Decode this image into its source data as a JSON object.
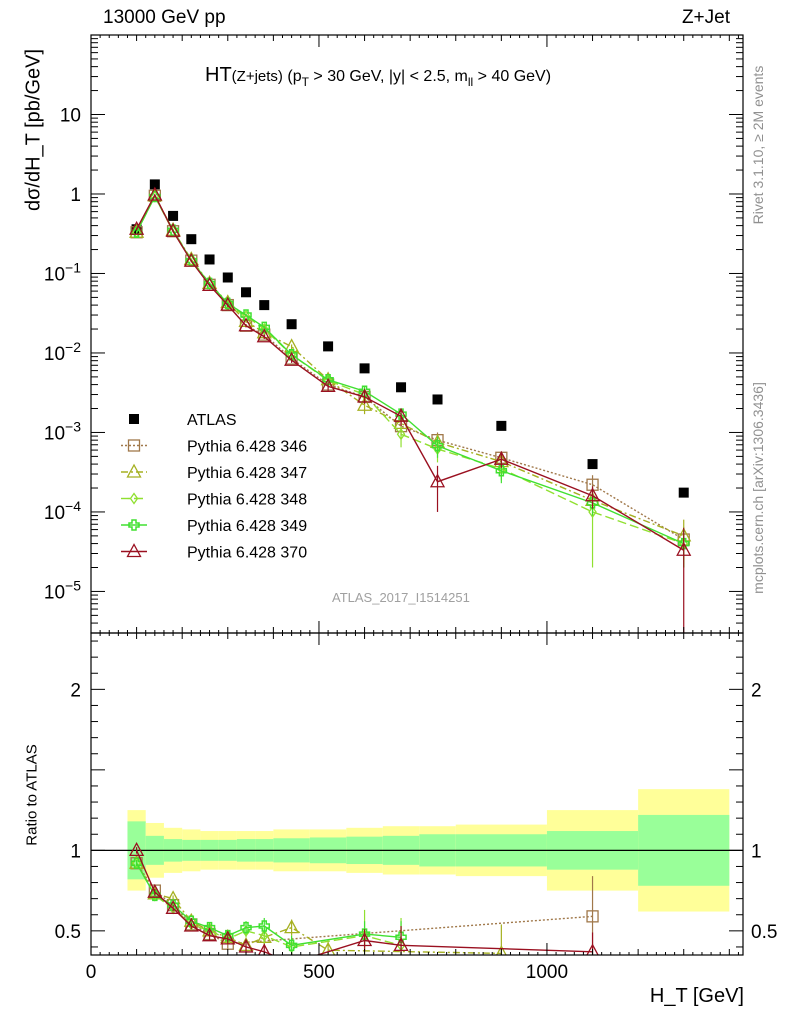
{
  "header": {
    "left": "13000 GeV pp",
    "right": "Z+Jet"
  },
  "side": {
    "rivet": "Rivet 3.1.10, ≥ 2M events",
    "mcplots": "mcplots.cern.ch [arXiv:1306.3436]"
  },
  "analysis_id": "ATLAS_2017_I1514251",
  "chart_data": [
    {
      "type": "scatter",
      "title": "HT(Z+jets) (pT > 30 GeV, |y| < 2.5, mll > 40 GeV)",
      "title_parts": {
        "main": "HT",
        "sub": "(Z+jets)",
        "cuts_a": " (p",
        "cuts_a_sub": "T",
        "cuts_b": " > 30 GeV, |y| < 2.5, m",
        "cuts_b_sub": "ll",
        "cuts_c": " > 40 GeV)"
      },
      "ylabel": "dσ/dH_T [pb/GeV]",
      "y_scale": "log",
      "ylim": [
        3e-06,
        100
      ],
      "xlim": [
        0,
        1430
      ],
      "x": [
        100,
        140,
        180,
        220,
        260,
        300,
        340,
        380,
        440,
        520,
        600,
        680,
        760,
        900,
        1100,
        1300
      ],
      "series": [
        {
          "name": "ATLAS",
          "color": "#000000",
          "marker": "square",
          "values": [
            0.36,
            1.32,
            0.53,
            0.27,
            0.15,
            0.089,
            0.058,
            0.04,
            0.023,
            0.0121,
            0.0064,
            0.0037,
            0.0026,
            0.00121,
            0.0004,
            0.000175
          ]
        },
        {
          "name": "Pythia 6.428 346",
          "color": "#a0784a",
          "marker": "square-open",
          "dash": "2,2",
          "values": [
            0.33,
            0.95,
            0.34,
            0.145,
            0.072,
            0.04,
            0.022,
            0.017,
            0.0085,
            0.004,
            0.0028,
            0.0012,
            0.0008,
            0.00048,
            0.00022,
            4.5e-05
          ],
          "errors": [
            0.01,
            0.02,
            0.01,
            0.005,
            0.003,
            0.002,
            0.001,
            0.001,
            0.0006,
            0.0004,
            0.0004,
            0.0003,
            0.0002,
            0.0001,
            7e-05,
            2e-05
          ]
        },
        {
          "name": "Pythia 6.428 347",
          "color": "#a5b020",
          "marker": "triangle-open",
          "dash": "7,3,2,3",
          "values": [
            0.33,
            0.95,
            0.35,
            0.15,
            0.075,
            0.043,
            0.025,
            0.018,
            0.012,
            0.0046,
            0.0022,
            0.0013,
            0.00075,
            0.00043,
            0.00014,
            5e-05
          ],
          "errors": [
            0.01,
            0.02,
            0.01,
            0.005,
            0.003,
            0.002,
            0.001,
            0.001,
            0.0008,
            0.0005,
            0.0005,
            0.0003,
            0.0002,
            0.0001,
            5e-05,
            3e-05
          ]
        },
        {
          "name": "Pythia 6.428 348",
          "color": "#90e030",
          "marker": "diamond-open",
          "dash": "9,4",
          "values": [
            0.33,
            0.93,
            0.34,
            0.145,
            0.074,
            0.04,
            0.029,
            0.02,
            0.0095,
            0.0045,
            0.003,
            0.00095,
            0.00062,
            0.00035,
            0.0001,
            4e-05
          ],
          "errors": [
            0.01,
            0.02,
            0.01,
            0.005,
            0.003,
            0.002,
            0.001,
            0.001,
            0.0007,
            0.0005,
            0.0005,
            0.0003,
            0.0002,
            0.0001,
            8e-05,
            2e-05
          ]
        },
        {
          "name": "Pythia 6.428 349",
          "color": "#40e030",
          "marker": "cross",
          "dash": "",
          "values": [
            0.33,
            0.93,
            0.35,
            0.145,
            0.075,
            0.042,
            0.03,
            0.021,
            0.0095,
            0.0046,
            0.0033,
            0.0017,
            0.00068,
            0.00033,
            0.00013,
            4e-05
          ],
          "errors": [
            0.01,
            0.02,
            0.01,
            0.005,
            0.003,
            0.002,
            0.001,
            0.001,
            0.0007,
            0.0005,
            0.0005,
            0.0003,
            0.0002,
            0.0001,
            4e-05,
            2e-05
          ]
        },
        {
          "name": "Pythia 6.428 370",
          "color": "#9a1020",
          "marker": "triangle-open",
          "dash": "",
          "values": [
            0.36,
            0.97,
            0.34,
            0.143,
            0.071,
            0.04,
            0.022,
            0.016,
            0.0081,
            0.0038,
            0.0028,
            0.0016,
            0.00024,
            0.00046,
            0.00016,
            3.3e-05
          ],
          "errors": [
            0.01,
            0.02,
            0.01,
            0.005,
            0.003,
            0.002,
            0.001,
            0.001,
            0.0006,
            0.0005,
            0.0005,
            0.0004,
            0.00014,
            0.0001,
            5e-05,
            3e-05
          ]
        }
      ],
      "yticks": [
        "10^-5",
        "10^-4",
        "10^-3",
        "10^-2",
        "10^-1",
        "1",
        "10"
      ],
      "legend": "left-center"
    },
    {
      "type": "scatter",
      "ylabel": "Ratio to ATLAS",
      "xlabel": "H_T [GeV]",
      "ylim": [
        0.35,
        2.35
      ],
      "xlim": [
        0,
        1430
      ],
      "yticks": [
        "0.5",
        "1",
        "2"
      ],
      "xticks": [
        "0",
        "500",
        "1000"
      ],
      "bins": [
        [
          80,
          120
        ],
        [
          120,
          160
        ],
        [
          160,
          200
        ],
        [
          200,
          240
        ],
        [
          240,
          280
        ],
        [
          280,
          320
        ],
        [
          320,
          360
        ],
        [
          360,
          400
        ],
        [
          400,
          480
        ],
        [
          480,
          560
        ],
        [
          560,
          640
        ],
        [
          640,
          720
        ],
        [
          720,
          800
        ],
        [
          800,
          1000
        ],
        [
          1000,
          1200
        ],
        [
          1200,
          1400
        ]
      ],
      "band_inner": [
        0.18,
        0.09,
        0.07,
        0.065,
        0.065,
        0.065,
        0.07,
        0.07,
        0.075,
        0.08,
        0.085,
        0.09,
        0.1,
        0.1,
        0.12,
        0.22
      ],
      "band_outer": [
        0.25,
        0.17,
        0.14,
        0.13,
        0.12,
        0.12,
        0.12,
        0.12,
        0.13,
        0.13,
        0.14,
        0.15,
        0.15,
        0.16,
        0.25,
        0.38
      ],
      "band_inner_color": "#99ff99",
      "band_outer_color": "#ffff99",
      "series": [
        {
          "name": "Pythia 6.428 346",
          "color": "#a0784a",
          "marker": "square-open",
          "dash": "2,2",
          "x": [
            100,
            140,
            180,
            220,
            260,
            300,
            1100
          ],
          "values": [
            0.92,
            0.75,
            0.66,
            0.54,
            0.48,
            0.42,
            0.59
          ],
          "errors": [
            0.02,
            0.02,
            0.02,
            0.02,
            0.02,
            0.03,
            0.25
          ]
        },
        {
          "name": "Pythia 6.428 347",
          "color": "#a5b020",
          "marker": "triangle-open",
          "dash": "7,3,2,3",
          "x": [
            100,
            140,
            180,
            220,
            260,
            300,
            340,
            380,
            440,
            520,
            900
          ],
          "values": [
            0.92,
            0.73,
            0.7,
            0.56,
            0.5,
            0.46,
            0.41,
            0.46,
            0.52,
            0.38,
            0.36
          ],
          "errors": [
            0.02,
            0.02,
            0.02,
            0.02,
            0.03,
            0.03,
            0.04,
            0.04,
            0.05,
            0.06,
            0.18
          ]
        },
        {
          "name": "Pythia 6.428 348",
          "color": "#90e030",
          "marker": "diamond-open",
          "dash": "9,4",
          "x": [
            100,
            140,
            180,
            220,
            260,
            300,
            340,
            380,
            440,
            600,
            680
          ],
          "values": [
            0.92,
            0.72,
            0.64,
            0.54,
            0.5,
            0.45,
            0.5,
            0.47,
            0.4,
            0.47,
            0.41
          ],
          "errors": [
            0.02,
            0.02,
            0.02,
            0.02,
            0.03,
            0.03,
            0.04,
            0.05,
            0.06,
            0.16,
            0.17
          ]
        },
        {
          "name": "Pythia 6.428 349",
          "color": "#40e030",
          "marker": "cross",
          "dash": "",
          "x": [
            100,
            140,
            180,
            220,
            260,
            300,
            340,
            380,
            440,
            600,
            680
          ],
          "values": [
            0.92,
            0.72,
            0.66,
            0.56,
            0.52,
            0.47,
            0.52,
            0.53,
            0.41,
            0.48,
            0.46
          ],
          "errors": [
            0.02,
            0.02,
            0.02,
            0.02,
            0.03,
            0.03,
            0.04,
            0.05,
            0.06,
            0.08,
            0.1
          ]
        },
        {
          "name": "Pythia 6.428 370",
          "color": "#9a1020",
          "marker": "triangle-open",
          "dash": "",
          "x": [
            100,
            140,
            180,
            220,
            260,
            300,
            340,
            380,
            440,
            600,
            680,
            1100
          ],
          "values": [
            1.0,
            0.74,
            0.64,
            0.53,
            0.47,
            0.45,
            0.4,
            0.37,
            0.3,
            0.44,
            0.41,
            0.37
          ],
          "errors": [
            0.02,
            0.02,
            0.02,
            0.02,
            0.03,
            0.03,
            0.04,
            0.05,
            0.06,
            0.07,
            0.12,
            0.12
          ]
        }
      ]
    }
  ]
}
